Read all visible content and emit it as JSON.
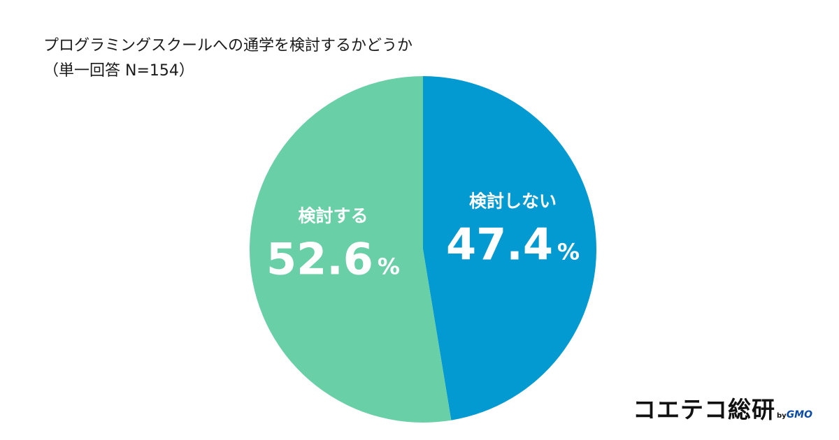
{
  "chart_data": {
    "type": "pie",
    "title": "プログラミングスクールへの通学を検討するかどうか",
    "subtitle": "（単一回答 N=154）",
    "slices": [
      {
        "label": "検討しない",
        "value": 47.4,
        "display": "47.4",
        "unit": "%",
        "color": "#0399d1"
      },
      {
        "label": "検討する",
        "value": 52.6,
        "display": "52.6",
        "unit": "%",
        "color": "#68cfa6"
      }
    ],
    "start": "12 o'clock",
    "direction": "clockwise"
  },
  "logo": {
    "text": "コエテコ総研",
    "by": "by",
    "company": "GMO"
  }
}
